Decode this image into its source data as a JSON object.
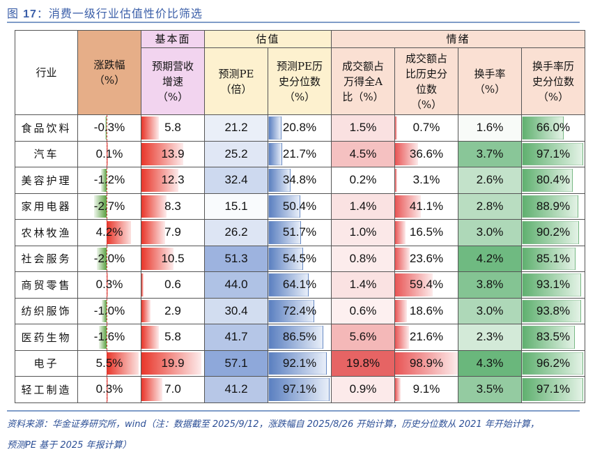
{
  "figure": {
    "label": "图 17：",
    "number": "17",
    "title": "消费一级行业估值性价比筛选"
  },
  "headers": {
    "industry": "行业",
    "change": "涨跌幅（%）",
    "change_l1": "涨跌幅",
    "change_l2": "（%）",
    "group_fund": "基本面",
    "group_val": "估值",
    "group_sent": "情绪",
    "rev_growth_l1": "预期营收",
    "rev_growth_l2": "增速",
    "rev_growth_l3": "（%）",
    "pe_l1": "预测PE",
    "pe_l2": "（倍）",
    "pe_pct_l1": "预测PE历",
    "pe_pct_l2": "史分位数",
    "pe_pct_l3": "（%）",
    "turnover_share_l1": "成交额占",
    "turnover_share_l2": "万得全A",
    "turnover_share_l3": "比（%）",
    "turnover_share_pct_l1": "成交额占",
    "turnover_share_pct_l2": "比历史分",
    "turnover_share_pct_l3": "位数",
    "turnover_share_pct_l4": "（%）",
    "turnover_rate_l1": "换手率",
    "turnover_rate_l2": "（%）",
    "turnover_rate_pct_l1": "换手率历",
    "turnover_rate_pct_l2": "史分位数",
    "turnover_rate_pct_l3": "（%）"
  },
  "colors": {
    "change_header": "#e6ae88",
    "fund_header": "#f2d4ef",
    "val_header": "#fdf1cf",
    "sent_header": "#fae0d3",
    "bar_red": "#e8362a",
    "bar_green": "#5aa040",
    "bar_blue": "#5a7fc0",
    "heat_blue": "#8ea8da",
    "heat_red": "#e55c5c",
    "heat_green": "#6ab77c",
    "title_blue": "#3a5ea8"
  },
  "rows": [
    {
      "industry": "食品饮料",
      "change": "-0.3%",
      "rev_growth": "5.8",
      "pe": "21.2",
      "pe_pct": "20.8%",
      "turnover_share": "1.5%",
      "turnover_share_pct": "0.7%",
      "turnover_rate": "1.6%",
      "turnover_rate_pct": "66.0%"
    },
    {
      "industry": "汽车",
      "change": "0.1%",
      "rev_growth": "13.9",
      "pe": "25.2",
      "pe_pct": "21.7%",
      "turnover_share": "4.5%",
      "turnover_share_pct": "36.6%",
      "turnover_rate": "3.7%",
      "turnover_rate_pct": "97.1%"
    },
    {
      "industry": "美容护理",
      "change": "-1.2%",
      "rev_growth": "12.3",
      "pe": "32.4",
      "pe_pct": "34.8%",
      "turnover_share": "0.2%",
      "turnover_share_pct": "3.1%",
      "turnover_rate": "2.6%",
      "turnover_rate_pct": "80.4%"
    },
    {
      "industry": "家用电器",
      "change": "-2.7%",
      "rev_growth": "8.3",
      "pe": "15.1",
      "pe_pct": "50.4%",
      "turnover_share": "1.4%",
      "turnover_share_pct": "41.1%",
      "turnover_rate": "2.8%",
      "turnover_rate_pct": "88.9%"
    },
    {
      "industry": "农林牧渔",
      "change": "4.2%",
      "rev_growth": "7.9",
      "pe": "26.2",
      "pe_pct": "51.7%",
      "turnover_share": "1.0%",
      "turnover_share_pct": "16.5%",
      "turnover_rate": "3.0%",
      "turnover_rate_pct": "90.2%"
    },
    {
      "industry": "社会服务",
      "change": "-2.0%",
      "rev_growth": "10.5",
      "pe": "51.3",
      "pe_pct": "54.5%",
      "turnover_share": "0.8%",
      "turnover_share_pct": "23.6%",
      "turnover_rate": "4.2%",
      "turnover_rate_pct": "85.1%"
    },
    {
      "industry": "商贸零售",
      "change": "0.3%",
      "rev_growth": "0.6",
      "pe": "44.0",
      "pe_pct": "64.1%",
      "turnover_share": "1.4%",
      "turnover_share_pct": "59.4%",
      "turnover_rate": "3.8%",
      "turnover_rate_pct": "93.1%"
    },
    {
      "industry": "纺织服饰",
      "change": "-1.0%",
      "rev_growth": "2.9",
      "pe": "30.4",
      "pe_pct": "72.4%",
      "turnover_share": "0.6%",
      "turnover_share_pct": "18.6%",
      "turnover_rate": "3.0%",
      "turnover_rate_pct": "93.8%"
    },
    {
      "industry": "医药生物",
      "change": "-1.6%",
      "rev_growth": "5.8",
      "pe": "41.7",
      "pe_pct": "86.5%",
      "turnover_share": "5.6%",
      "turnover_share_pct": "21.6%",
      "turnover_rate": "2.3%",
      "turnover_rate_pct": "83.5%"
    },
    {
      "industry": "电子",
      "change": "5.5%",
      "rev_growth": "19.9",
      "pe": "57.1",
      "pe_pct": "92.1%",
      "turnover_share": "19.8%",
      "turnover_share_pct": "98.9%",
      "turnover_rate": "4.3%",
      "turnover_rate_pct": "96.2%"
    },
    {
      "industry": "轻工制造",
      "change": "0.3%",
      "rev_growth": "7.0",
      "pe": "41.2",
      "pe_pct": "97.1%",
      "turnover_share": "0.9%",
      "turnover_share_pct": "9.1%",
      "turnover_rate": "3.5%",
      "turnover_rate_pct": "97.1%"
    }
  ],
  "footer": {
    "line1": "资料来源：华金证券研究所，wind（注：数据截至 2025/9/12，涨跌幅自 2025/8/26 开始计算，历史分位数从 2021 年开始计算，",
    "line2": "预测PE 基于 2025 年报计算）"
  },
  "chart_data": {
    "type": "table",
    "title": "图 17：消费一级行业估值性价比筛选",
    "columns": [
      "行业",
      "涨跌幅（%）",
      "预期营收增速（%）",
      "预测PE（倍）",
      "预测PE历史分位数（%）",
      "成交额占万得全A比（%）",
      "成交额占比历史分位数（%）",
      "换手率（%）",
      "换手率历史分位数（%）"
    ],
    "column_groups": [
      {
        "name": "基本面",
        "columns": [
          "预期营收增速（%）"
        ]
      },
      {
        "name": "估值",
        "columns": [
          "预测PE（倍）",
          "预测PE历史分位数（%）"
        ]
      },
      {
        "name": "情绪",
        "columns": [
          "成交额占万得全A比（%）",
          "成交额占比历史分位数（%）",
          "换手率（%）",
          "换手率历史分位数（%）"
        ]
      }
    ],
    "categories": [
      "食品饮料",
      "汽车",
      "美容护理",
      "家用电器",
      "农林牧渔",
      "社会服务",
      "商贸零售",
      "纺织服饰",
      "医药生物",
      "电子",
      "轻工制造"
    ],
    "series": [
      {
        "name": "涨跌幅（%）",
        "values": [
          -0.3,
          0.1,
          -1.2,
          -2.7,
          4.2,
          -2.0,
          0.3,
          -1.0,
          -1.6,
          5.5,
          0.3
        ],
        "style": "data-bar (green negative / red positive)"
      },
      {
        "name": "预期营收增速（%）",
        "values": [
          5.8,
          13.9,
          12.3,
          8.3,
          7.9,
          10.5,
          0.6,
          2.9,
          5.8,
          19.9,
          7.0
        ],
        "style": "data-bar red"
      },
      {
        "name": "预测PE（倍）",
        "values": [
          21.2,
          25.2,
          32.4,
          15.1,
          26.2,
          51.3,
          44.0,
          30.4,
          41.7,
          57.1,
          41.2
        ],
        "style": "heatmap blue"
      },
      {
        "name": "预测PE历史分位数（%）",
        "values": [
          20.8,
          21.7,
          34.8,
          50.4,
          51.7,
          54.5,
          64.1,
          72.4,
          86.5,
          92.1,
          97.1
        ],
        "style": "data-bar blue"
      },
      {
        "name": "成交额占万得全A比（%）",
        "values": [
          1.5,
          4.5,
          0.2,
          1.4,
          1.0,
          0.8,
          1.4,
          0.6,
          5.6,
          19.8,
          0.9
        ],
        "style": "heatmap red"
      },
      {
        "name": "成交额占比历史分位数（%）",
        "values": [
          0.7,
          36.6,
          3.1,
          41.1,
          16.5,
          23.6,
          59.4,
          18.6,
          21.6,
          98.9,
          9.1
        ],
        "style": "data-bar red"
      },
      {
        "name": "换手率（%）",
        "values": [
          1.6,
          3.7,
          2.6,
          2.8,
          3.0,
          4.2,
          3.8,
          3.0,
          2.3,
          4.3,
          3.5
        ],
        "style": "heatmap green"
      },
      {
        "name": "换手率历史分位数（%）",
        "values": [
          66.0,
          97.1,
          80.4,
          88.9,
          90.2,
          85.1,
          93.1,
          93.8,
          83.5,
          96.2,
          97.1
        ],
        "style": "data-bar green"
      }
    ],
    "source": "资料来源：华金证券研究所，wind（注：数据截至 2025/9/12，涨跌幅自 2025/8/26 开始计算，历史分位数从 2021 年开始计算，预测PE 基于 2025 年报计算）"
  }
}
